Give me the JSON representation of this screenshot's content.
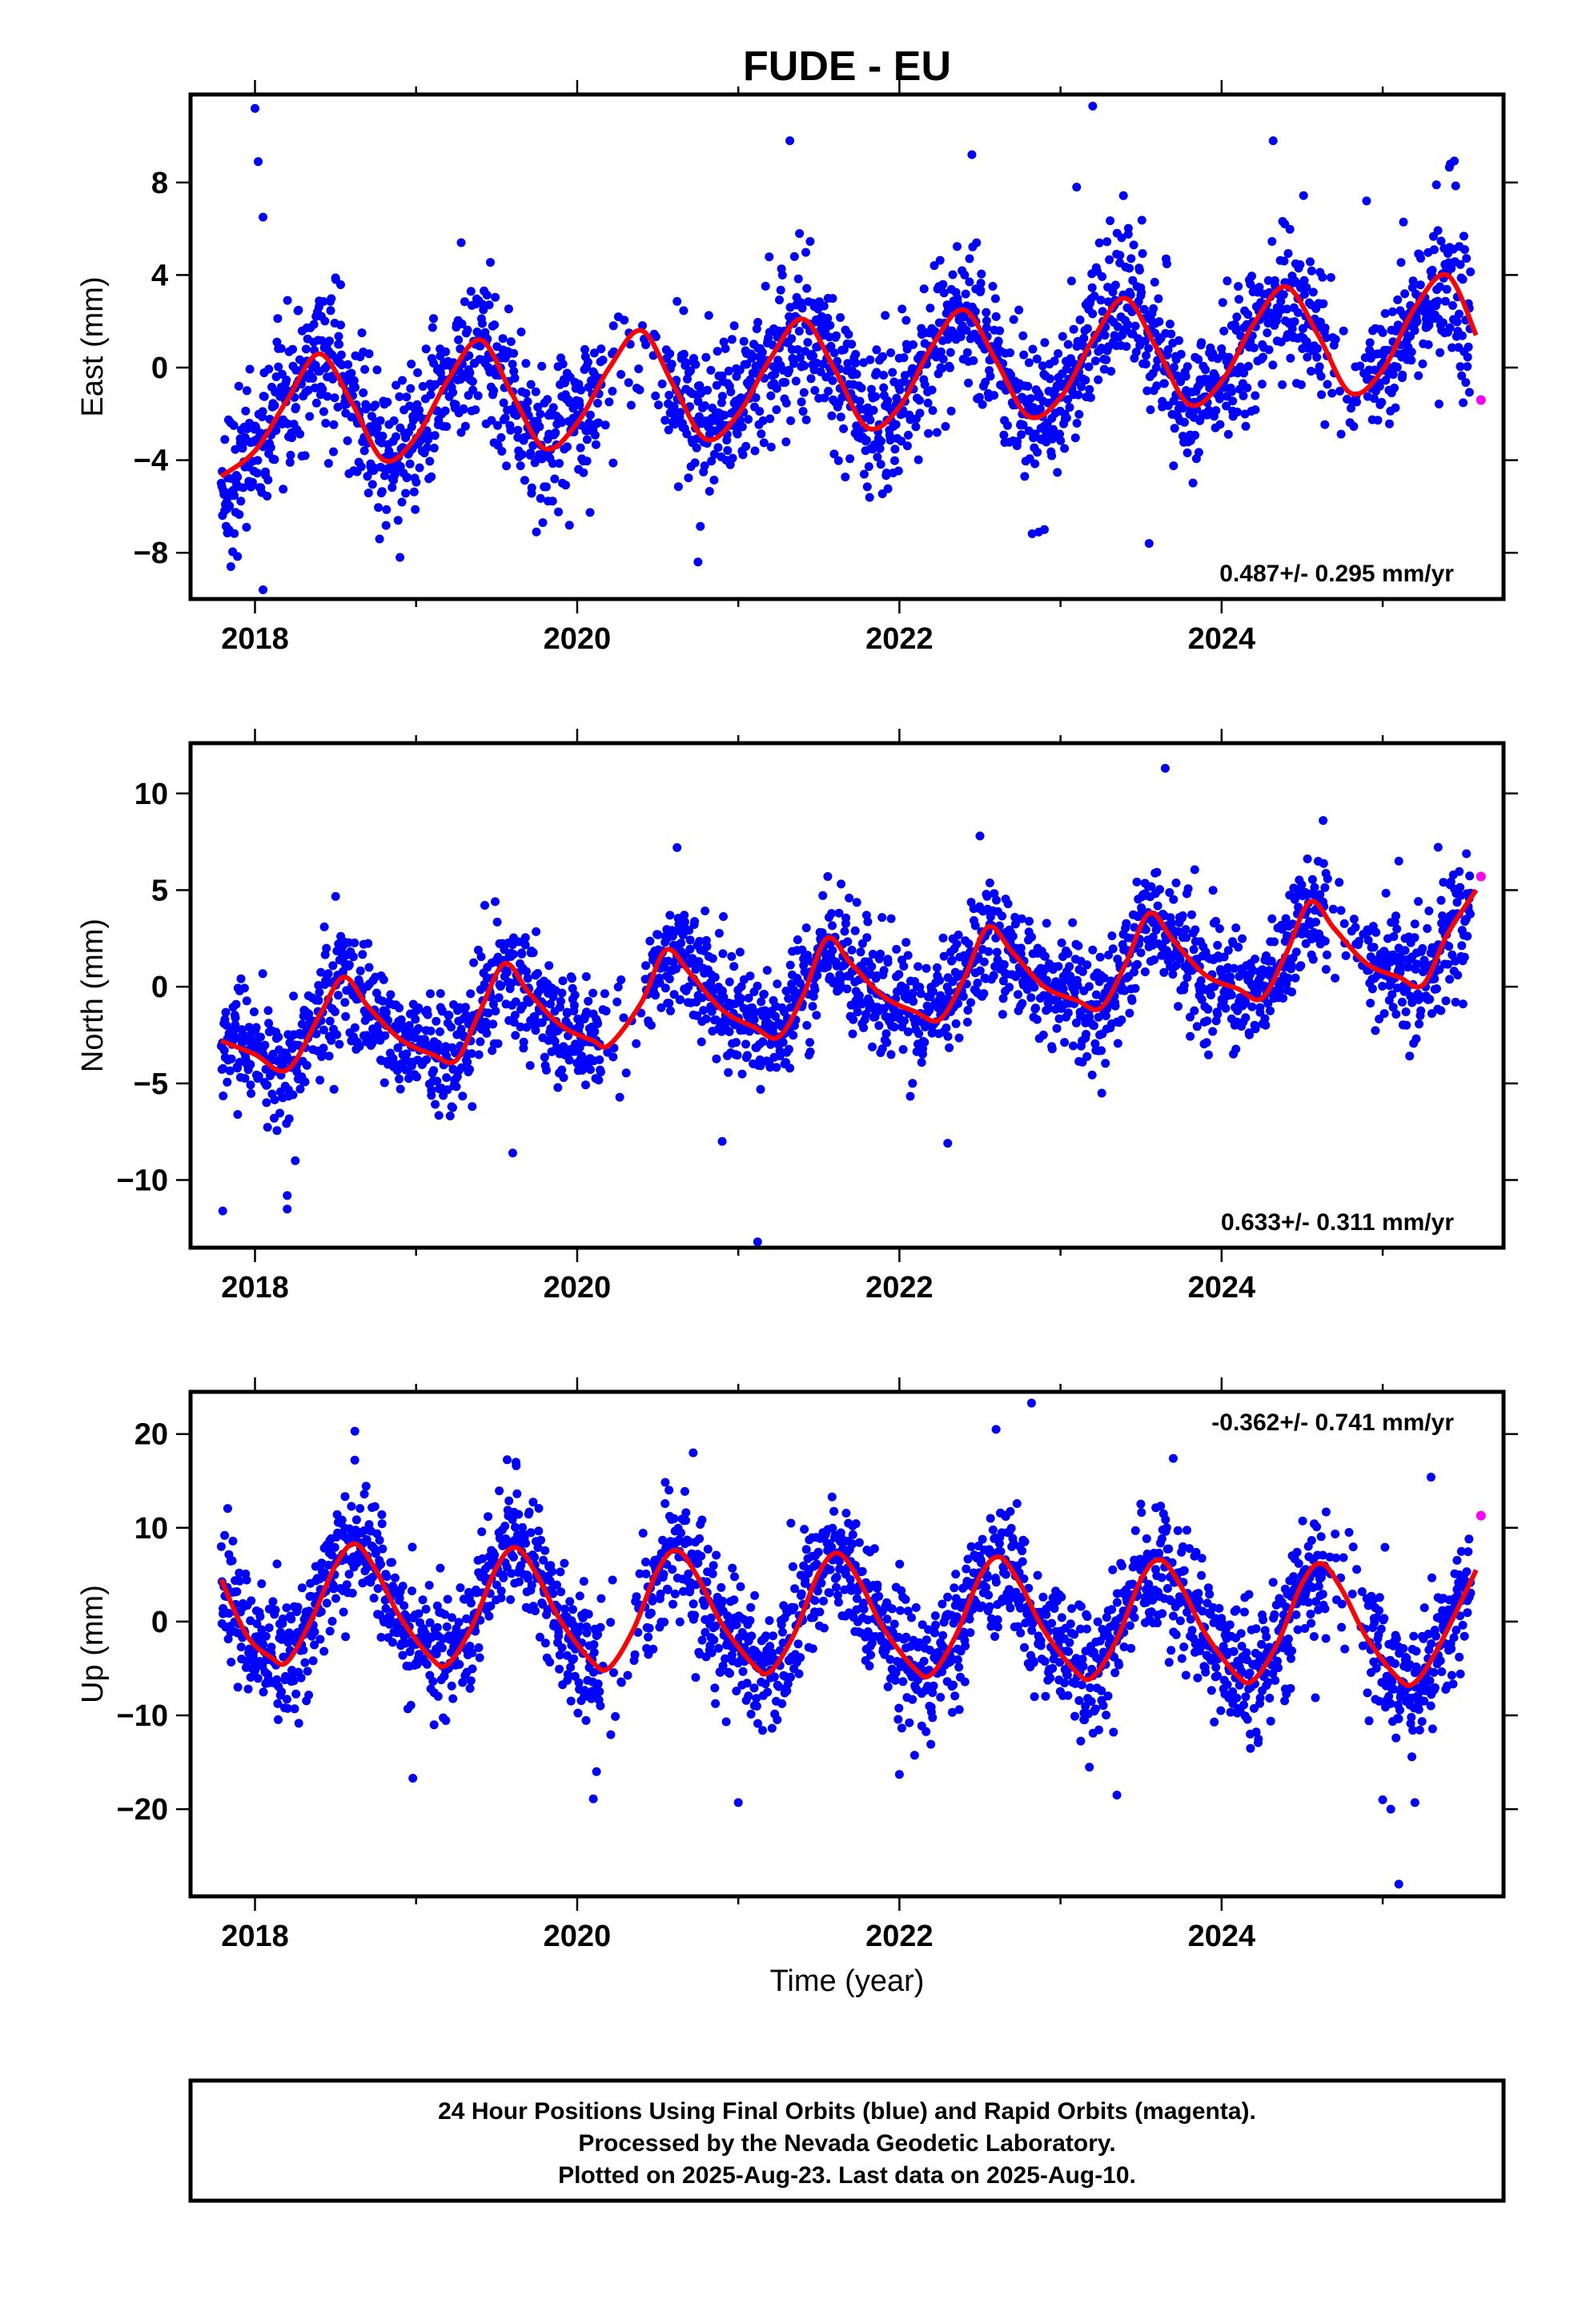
{
  "title": "FUDE - EU",
  "x_axis_label": "Time (year)",
  "footer": {
    "line1": "24 Hour Positions Using Final Orbits (blue) and Rapid Orbits (magenta).",
    "line2": "Processed by the Nevada Geodetic Laboratory.",
    "line3": "Plotted on 2025-Aug-23. Last data on 2025-Aug-10."
  },
  "colors": {
    "final_orbits": "#0000ff",
    "rapid_orbits": "#ff00ff",
    "model_fit": "#ff0000"
  },
  "chart_data": [
    {
      "type": "scatter",
      "panel": "east",
      "ylabel": "East (mm)",
      "rate_label": "0.487+/- 0.295 mm/yr",
      "xlim": [
        2017.6,
        2025.75
      ],
      "ylim": [
        -10,
        11.8
      ],
      "xticks": [
        2018,
        2020,
        2022,
        2024
      ],
      "yticks": [
        -8,
        -4,
        0,
        4,
        8
      ],
      "trend": {
        "rate_mm_per_yr": 0.487,
        "value_at_start": -1.8,
        "start_year": 2017.79
      },
      "seasonal": {
        "annual_amplitude": 2.9,
        "annual_peak_year_fraction": 0.38
      },
      "final_orbits_series": {
        "name": "",
        "start_year": 2017.79,
        "end_year": 2025.55,
        "noise_sigma_mm": 1.6,
        "points_per_year": 300,
        "gaps": [
          [
            2020.15,
            2020.55
          ],
          [
            2024.65,
            2024.9
          ]
        ]
      },
      "rapid_orbits_points": [
        {
          "x": 2025.61,
          "y": -1.4
        }
      ],
      "model_fit": {
        "x": [
          2017.79,
          2018.0,
          2018.2,
          2018.4,
          2018.6,
          2018.8,
          2019.0,
          2019.2,
          2019.4,
          2019.6,
          2019.8,
          2020.0,
          2020.2,
          2020.4,
          2020.6,
          2020.8,
          2021.0,
          2021.2,
          2021.4,
          2021.6,
          2021.8,
          2022.0,
          2022.2,
          2022.4,
          2022.6,
          2022.8,
          2023.0,
          2023.2,
          2023.4,
          2023.6,
          2023.8,
          2024.0,
          2024.2,
          2024.4,
          2024.6,
          2024.8,
          2025.0,
          2025.2,
          2025.4,
          2025.58
        ],
        "y": [
          -4.7,
          -3.6,
          -1.4,
          0.6,
          -1.5,
          -4.0,
          -3.0,
          -0.5,
          1.2,
          -1.2,
          -3.5,
          -2.4,
          0.0,
          1.6,
          -0.8,
          -3.1,
          -2.0,
          0.4,
          2.1,
          -0.1,
          -2.6,
          -1.7,
          0.9,
          2.5,
          0.3,
          -2.1,
          -1.3,
          1.2,
          3.0,
          0.8,
          -1.6,
          -0.6,
          1.9,
          3.5,
          1.4,
          -1.1,
          -0.1,
          2.6,
          4.0,
          1.4
        ]
      },
      "outliers": [
        {
          "x": 2018.0,
          "y": 11.2
        },
        {
          "x": 2018.02,
          "y": 8.9
        },
        {
          "x": 2018.05,
          "y": 6.5
        },
        {
          "x": 2017.85,
          "y": -8.6
        },
        {
          "x": 2018.05,
          "y": -9.6
        },
        {
          "x": 2019.28,
          "y": 5.4
        },
        {
          "x": 2021.32,
          "y": 9.8
        },
        {
          "x": 2022.45,
          "y": 9.2
        },
        {
          "x": 2023.2,
          "y": 11.3
        },
        {
          "x": 2023.1,
          "y": 7.8
        },
        {
          "x": 2024.32,
          "y": 9.8
        },
        {
          "x": 2025.42,
          "y": 8.8
        },
        {
          "x": 2023.55,
          "y": -7.6
        },
        {
          "x": 2020.75,
          "y": -8.4
        },
        {
          "x": 2022.9,
          "y": -7.0
        },
        {
          "x": 2018.9,
          "y": -8.2
        },
        {
          "x": 2024.9,
          "y": 7.2
        }
      ]
    },
    {
      "type": "scatter",
      "panel": "north",
      "ylabel": "North (mm)",
      "rate_label": "0.633+/- 0.311 mm/yr",
      "xlim": [
        2017.6,
        2025.75
      ],
      "ylim": [
        -13.5,
        12.6
      ],
      "xticks": [
        2018,
        2020,
        2022,
        2024
      ],
      "yticks": [
        -10,
        -5,
        0,
        5,
        10
      ],
      "trend": {
        "rate_mm_per_yr": 0.633,
        "value_at_start": -2.3,
        "start_year": 2017.79
      },
      "seasonal": {
        "annual_amplitude": 2.2,
        "annual_peak_year_fraction": 0.55
      },
      "final_orbits_series": {
        "name": "",
        "start_year": 2017.79,
        "end_year": 2025.55,
        "noise_sigma_mm": 1.5,
        "points_per_year": 300,
        "gaps": [
          [
            2020.15,
            2020.42
          ],
          [
            2024.65,
            2024.9
          ]
        ]
      },
      "rapid_orbits_points": [
        {
          "x": 2025.61,
          "y": 5.7
        }
      ],
      "model_fit": {
        "x": [
          2017.79,
          2018.0,
          2018.2,
          2018.4,
          2018.55,
          2018.7,
          2018.9,
          2019.1,
          2019.25,
          2019.4,
          2019.55,
          2019.7,
          2019.9,
          2020.1,
          2020.2,
          2020.4,
          2020.55,
          2020.7,
          2020.9,
          2021.1,
          2021.25,
          2021.4,
          2021.55,
          2021.7,
          2021.9,
          2022.1,
          2022.25,
          2022.4,
          2022.55,
          2022.7,
          2022.9,
          2023.1,
          2023.25,
          2023.4,
          2023.55,
          2023.7,
          2023.9,
          2024.1,
          2024.25,
          2024.4,
          2024.55,
          2024.7,
          2024.9,
          2025.1,
          2025.25,
          2025.4,
          2025.58
        ],
        "y": [
          -2.8,
          -3.5,
          -4.3,
          -1.5,
          0.5,
          -1.0,
          -2.7,
          -3.5,
          -3.8,
          -1.2,
          1.2,
          -0.3,
          -2.0,
          -2.8,
          -3.0,
          -0.8,
          1.9,
          0.7,
          -1.2,
          -2.1,
          -2.6,
          -0.5,
          2.5,
          1.2,
          -0.5,
          -1.3,
          -1.7,
          0.4,
          3.1,
          1.8,
          0.0,
          -0.7,
          -1.1,
          1.1,
          3.8,
          2.4,
          0.6,
          -0.1,
          -0.6,
          1.7,
          4.4,
          3.0,
          1.2,
          0.5,
          0.1,
          2.7,
          5.0
        ]
      },
      "outliers": [
        {
          "x": 2017.8,
          "y": -11.6
        },
        {
          "x": 2018.2,
          "y": -11.5
        },
        {
          "x": 2018.2,
          "y": -10.8
        },
        {
          "x": 2018.25,
          "y": -9.0
        },
        {
          "x": 2021.12,
          "y": -13.2
        },
        {
          "x": 2023.65,
          "y": 11.3
        },
        {
          "x": 2022.5,
          "y": 7.8
        },
        {
          "x": 2024.63,
          "y": 8.6
        },
        {
          "x": 2025.1,
          "y": 6.5
        },
        {
          "x": 2020.62,
          "y": 7.2
        },
        {
          "x": 2022.3,
          "y": -8.1
        },
        {
          "x": 2020.9,
          "y": -8.0
        },
        {
          "x": 2019.6,
          "y": -8.6
        }
      ]
    },
    {
      "type": "scatter",
      "panel": "up",
      "ylabel": "Up (mm)",
      "rate_label": "-0.362+/- 0.741 mm/yr",
      "xlim": [
        2017.6,
        2025.75
      ],
      "ylim": [
        -29.3,
        24.5
      ],
      "xticks": [
        2018,
        2020,
        2022,
        2024
      ],
      "yticks": [
        -20,
        -10,
        0,
        10,
        20
      ],
      "trend": {
        "rate_mm_per_yr": -0.362,
        "value_at_start": 1.3,
        "start_year": 2017.79
      },
      "seasonal": {
        "annual_amplitude": 6.2,
        "annual_peak_year_fraction": 0.62
      },
      "final_orbits_series": {
        "name": "",
        "start_year": 2017.79,
        "end_year": 2025.55,
        "noise_sigma_mm": 3.5,
        "points_per_year": 300,
        "gaps": [
          [
            2020.15,
            2020.42
          ],
          [
            2024.65,
            2024.9
          ]
        ]
      },
      "rapid_orbits_points": [
        {
          "x": 2025.61,
          "y": 11.3
        }
      ],
      "model_fit": {
        "x": [
          2017.79,
          2017.95,
          2018.1,
          2018.2,
          2018.35,
          2018.5,
          2018.62,
          2018.75,
          2018.9,
          2019.1,
          2019.2,
          2019.35,
          2019.5,
          2019.62,
          2019.75,
          2019.9,
          2020.1,
          2020.2,
          2020.35,
          2020.5,
          2020.62,
          2020.75,
          2020.9,
          2021.1,
          2021.2,
          2021.35,
          2021.5,
          2021.62,
          2021.75,
          2021.9,
          2022.1,
          2022.2,
          2022.35,
          2022.5,
          2022.62,
          2022.75,
          2022.9,
          2023.1,
          2023.2,
          2023.35,
          2023.5,
          2023.62,
          2023.75,
          2023.9,
          2024.1,
          2024.2,
          2024.35,
          2024.5,
          2024.62,
          2024.75,
          2024.9,
          2025.1,
          2025.2,
          2025.35,
          2025.58
        ],
        "y": [
          4.5,
          -1.5,
          -3.8,
          -4.3,
          0.2,
          6.0,
          8.3,
          5.5,
          0.5,
          -4.0,
          -4.5,
          -0.4,
          5.8,
          7.9,
          5.0,
          0.0,
          -4.4,
          -4.9,
          -0.8,
          5.5,
          7.6,
          4.7,
          -0.3,
          -4.7,
          -5.3,
          -1.2,
          5.2,
          7.3,
          4.4,
          -0.7,
          -5.1,
          -5.6,
          -1.5,
          4.8,
          6.9,
          4.0,
          -1.0,
          -5.4,
          -5.9,
          -1.9,
          4.5,
          6.6,
          3.7,
          -1.3,
          -5.8,
          -6.2,
          -2.2,
          4.1,
          6.2,
          3.3,
          -1.7,
          -6.1,
          -6.5,
          -2.6,
          5.5
        ]
      },
      "outliers": [
        {
          "x": 2018.62,
          "y": 20.3
        },
        {
          "x": 2022.6,
          "y": 20.5
        },
        {
          "x": 2022.82,
          "y": 23.3
        },
        {
          "x": 2023.7,
          "y": 17.4
        },
        {
          "x": 2019.62,
          "y": 17.0
        },
        {
          "x": 2020.72,
          "y": 18.0
        },
        {
          "x": 2025.3,
          "y": 15.4
        },
        {
          "x": 2018.98,
          "y": -16.7
        },
        {
          "x": 2020.1,
          "y": -18.9
        },
        {
          "x": 2020.12,
          "y": -16.0
        },
        {
          "x": 2021.0,
          "y": -19.3
        },
        {
          "x": 2023.35,
          "y": -18.5
        },
        {
          "x": 2025.0,
          "y": -19.0
        },
        {
          "x": 2025.05,
          "y": -20.0
        },
        {
          "x": 2025.1,
          "y": -28.0
        },
        {
          "x": 2025.2,
          "y": -19.3
        },
        {
          "x": 2022.0,
          "y": -16.3
        }
      ]
    }
  ]
}
